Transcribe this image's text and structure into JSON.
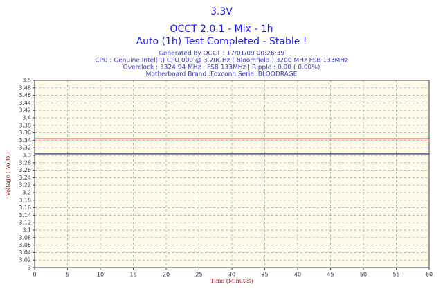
{
  "chart_data": {
    "type": "line",
    "title": "3.3V",
    "subtitles": [
      "OCCT 2.0.1 - Mix - 1h",
      "Auto (1h) Test Completed - Stable !"
    ],
    "info": [
      "Generated by OCCT : 17/01/09 00:26:39",
      "CPU : Genuine Intel(R) CPU 000 @ 3.20GHz ( Bloomfield ) 3200 MHz FSB 133MHz",
      "Overclock : 3324.94 MHz ; FSB 133MHz | Ripple : 0.00 ( 0.00%)",
      "Motherboard Brand :Foxconn,Serie :BLOODRAGE"
    ],
    "xlabel": "Time (Minutes)",
    "ylabel": "Voltage ( Volts )",
    "x": [
      0,
      60
    ],
    "series": [
      {
        "color": "#b22222",
        "values": [
          3.344,
          3.344
        ]
      },
      {
        "color": "#1f2fa0",
        "values": [
          3.304,
          3.304
        ]
      }
    ],
    "xlim": [
      0,
      60
    ],
    "xticks": [
      0,
      5,
      10,
      15,
      20,
      25,
      30,
      35,
      40,
      45,
      50,
      55,
      60
    ],
    "ylim": [
      3,
      3.5
    ],
    "yticks": [
      3,
      3.02,
      3.04,
      3.06,
      3.08,
      3.1,
      3.12,
      3.14,
      3.16,
      3.18,
      3.2,
      3.22,
      3.24,
      3.26,
      3.28,
      3.3,
      3.32,
      3.34,
      3.36,
      3.38,
      3.4,
      3.42,
      3.44,
      3.46,
      3.48,
      3.5
    ],
    "grid": true
  }
}
